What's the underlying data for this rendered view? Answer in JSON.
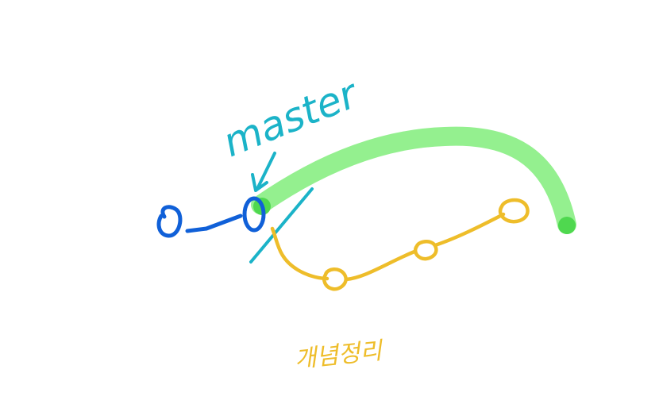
{
  "colors": {
    "background": "#ffffff",
    "master_commits": "#1060d8",
    "master_label": "#1bb3c8",
    "green_path": "#94f08f",
    "green_endpoint": "#4fd84f",
    "branch": "#eebd2a"
  },
  "labels": {
    "master": "master",
    "branch_name": "개념정리"
  },
  "master_commits": [
    "commit",
    "commit"
  ],
  "branch_commits": [
    "commit",
    "commit",
    "commit"
  ]
}
